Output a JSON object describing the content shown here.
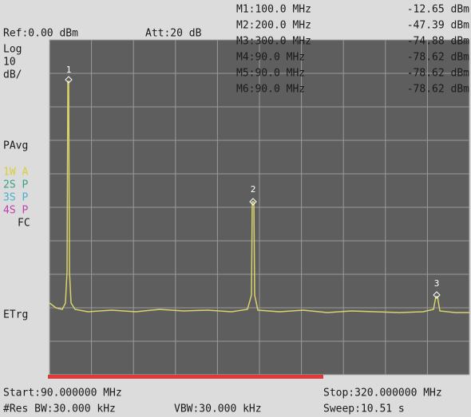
{
  "header": {
    "ref": "Ref:0.00 dBm",
    "att": "Att:20 dB"
  },
  "markers": [
    {
      "label": "M1:100.0 MHz",
      "value": "-12.65 dBm"
    },
    {
      "label": "M2:200.0 MHz",
      "value": "-47.39 dBm"
    },
    {
      "label": "M3:300.0 MHz",
      "value": "-74.88 dBm"
    },
    {
      "label": "M4:90.0 MHz",
      "value": "-78.62 dBm"
    },
    {
      "label": "M5:90.0 MHz",
      "value": "-78.62 dBm"
    },
    {
      "label": "M6:90.0 MHz",
      "value": "-78.62 dBm"
    }
  ],
  "sidebar": {
    "scale": [
      "Log",
      "10",
      "dB/"
    ],
    "avg": "PAvg",
    "traces": [
      "1W A",
      "2S P",
      "3S P",
      "4S P"
    ],
    "fc": "FC",
    "trigger": "ETrg"
  },
  "plot_markers": [
    "1",
    "2",
    "3"
  ],
  "footer": {
    "start": "Start:90.000000 MHz",
    "stop": "Stop:320.000000 MHz",
    "res_bw": "#Res BW:30.000 kHz",
    "vbw": "VBW:30.000 kHz",
    "sweep": "Sweep:10.51 s"
  }
}
